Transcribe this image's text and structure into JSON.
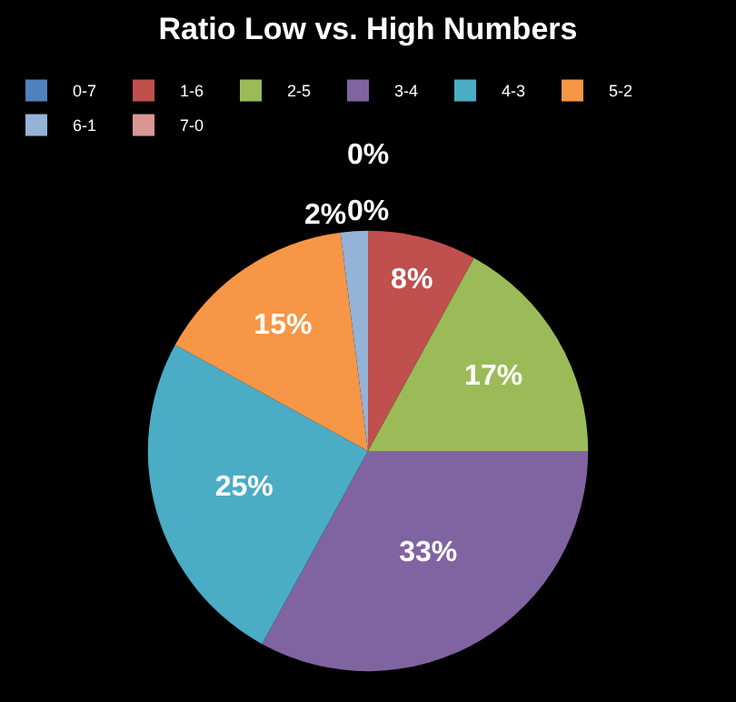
{
  "chart_data": {
    "type": "pie",
    "title": "Ratio Low vs. High Numbers",
    "categories": [
      "0-7",
      "1-6",
      "2-5",
      "3-4",
      "4-3",
      "5-2",
      "6-1",
      "7-0"
    ],
    "values": [
      0,
      8,
      17,
      33,
      25,
      15,
      2,
      0
    ],
    "colors": [
      "#4f81bd",
      "#c0504d",
      "#9bbb59",
      "#8064a2",
      "#4bacc6",
      "#f79646",
      "#95b3d7",
      "#d99694"
    ],
    "value_labels": [
      "0%",
      "8%",
      "17%",
      "33%",
      "25%",
      "15%",
      "2%",
      "0%"
    ],
    "legend": "top"
  }
}
